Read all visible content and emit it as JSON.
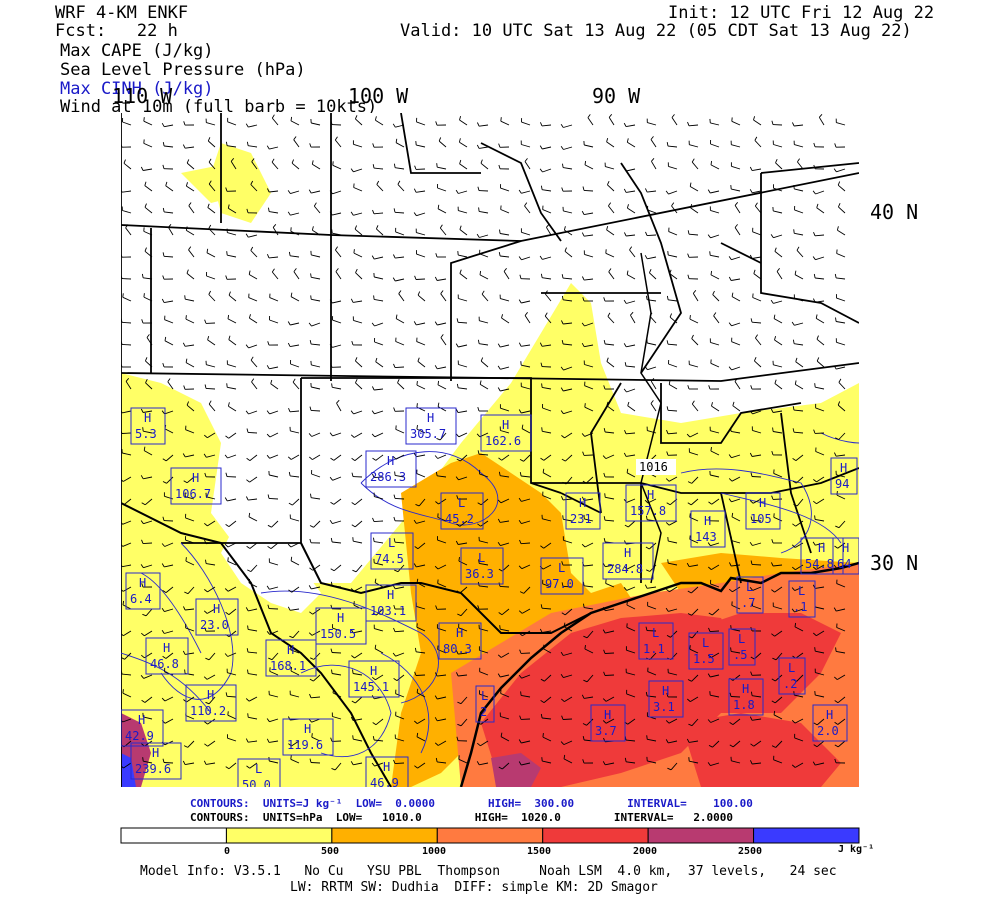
{
  "header": {
    "model": "WRF 4-KM ENKF",
    "fcst": "Fcst:   22 h",
    "init": "Init: 12 UTC Fri 12 Aug 22",
    "valid": "Valid: 10 UTC Sat 13 Aug 22 (05 CDT Sat 13 Aug 22)",
    "fields": [
      {
        "label": "Max CAPE (J/kg)",
        "color": "#000000"
      },
      {
        "label": "Sea Level Pressure (hPa)",
        "color": "#000000"
      },
      {
        "label": "Max CINH (J/kg)",
        "color": "#1a1ac8"
      },
      {
        "label": "Wind at 10m (full barb = 10kts)",
        "color": "#000000"
      }
    ]
  },
  "axes": {
    "lon_labels": [
      "110 W",
      "100 W",
      "90 W"
    ],
    "lat_labels": [
      "40 N",
      "30 N"
    ]
  },
  "map_labels": {
    "pressure_centers": [
      {
        "type": "H",
        "value": "305.7"
      },
      {
        "type": "H",
        "value": "162.6"
      },
      {
        "type": "H",
        "value": "286.3"
      },
      {
        "type": "H",
        "value": "106.7"
      },
      {
        "type": "L",
        "value": "45.2"
      },
      {
        "type": "L",
        "value": "74.5"
      },
      {
        "type": "L",
        "value": "36.3"
      },
      {
        "type": "L",
        "value": "97.0"
      },
      {
        "type": "H",
        "value": "231"
      },
      {
        "type": "H",
        "value": "157.8"
      },
      {
        "type": "H",
        "value": "143"
      },
      {
        "type": "H",
        "value": "105"
      },
      {
        "type": "H",
        "value": "94"
      },
      {
        "type": "H",
        "value": "284.8"
      },
      {
        "type": "H",
        "value": "54.8"
      },
      {
        "type": "H",
        "value": "64"
      },
      {
        "type": "H",
        "value": "103.1"
      },
      {
        "type": "H",
        "value": "23.0"
      },
      {
        "type": "H",
        "value": "150.5"
      },
      {
        "type": "H",
        "value": "46.8"
      },
      {
        "type": "H",
        "value": "168.1"
      },
      {
        "type": "H",
        "value": "80.3"
      },
      {
        "type": "H",
        "value": "145.1"
      },
      {
        "type": "H",
        "value": "110.2"
      },
      {
        "type": "H",
        "value": "119.6"
      },
      {
        "type": "H",
        "value": "239.6"
      },
      {
        "type": "H",
        "value": "42.9"
      },
      {
        "type": "L",
        "value": "50.0"
      },
      {
        "type": "H",
        "value": "46.9"
      },
      {
        "type": "L",
        "value": "2"
      },
      {
        "type": "H",
        "value": "3.7"
      },
      {
        "type": "H",
        "value": "3.1"
      },
      {
        "type": "H",
        "value": "1.8"
      },
      {
        "type": "L",
        "value": "1.1"
      },
      {
        "type": "L",
        "value": "1.5"
      },
      {
        "type": "L",
        "value": ".5"
      },
      {
        "type": "L",
        "value": ".2"
      },
      {
        "type": "L",
        "value": ".1"
      },
      {
        "type": "L",
        "value": ".7"
      },
      {
        "type": "H",
        "value": "2.0"
      },
      {
        "type": "H",
        "value": "6.4"
      },
      {
        "type": "H",
        "value": "5.3"
      }
    ],
    "isobar_label": "1016"
  },
  "footer": {
    "cape_contours": "CONTOURS:  UNITS=J kg⁻¹  LOW=  0.0000        HIGH=  300.00        INTERVAL=    100.00",
    "slp_contours": "CONTOURS:  UNITS=hPa  LOW=   1010.0        HIGH=  1020.0        INTERVAL=   2.0000",
    "colorbar": {
      "ticks": [
        "0",
        "500",
        "1000",
        "1500",
        "2000",
        "2500"
      ],
      "unit": "J kg⁻¹",
      "colors": [
        "#ffffff",
        "#ffff66",
        "#ffb000",
        "#ff7a40",
        "#ef3a3a",
        "#b83a70",
        "#3a3aff"
      ]
    },
    "model_info_1": "Model Info: V3.5.1   No Cu   YSU PBL  Thompson     Noah LSM  4.0 km,  37 levels,   24 sec",
    "model_info_2": "LW: RRTM SW: Dudhia  DIFF: simple KM: 2D Smagor"
  }
}
